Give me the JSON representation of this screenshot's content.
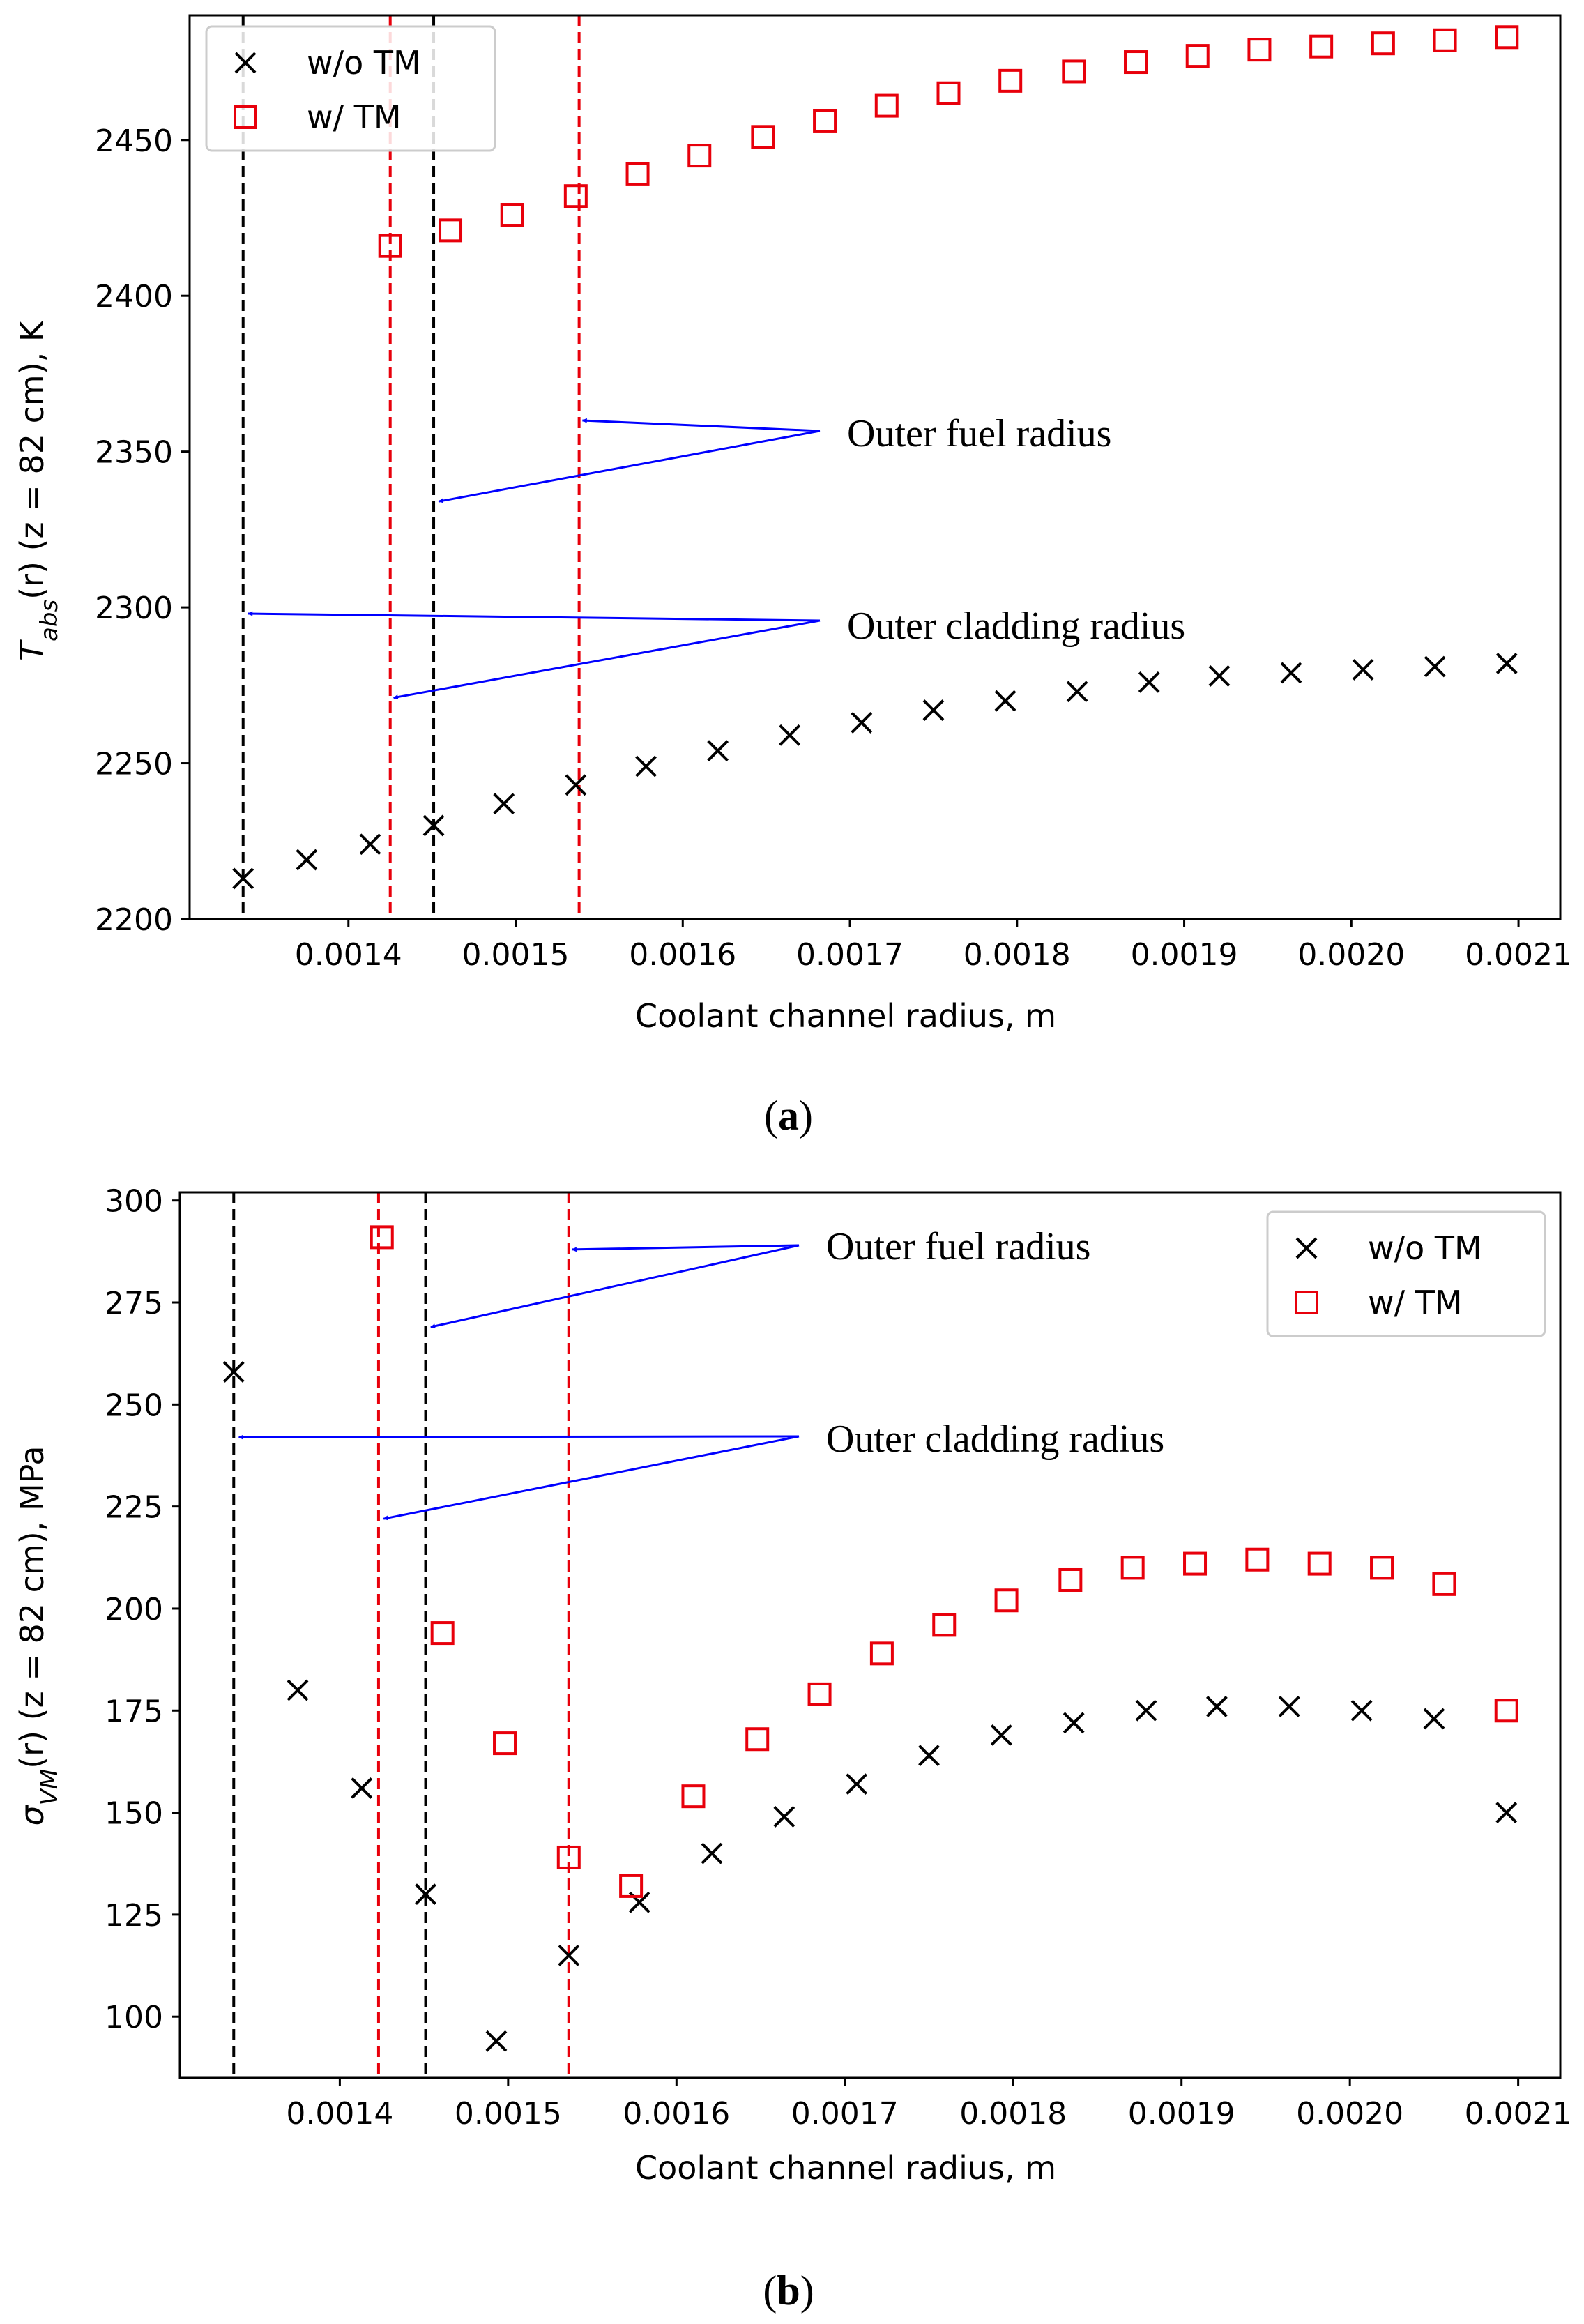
{
  "chart_data": [
    {
      "type": "scatter",
      "panel_label": {
        "open": "(",
        "letter": "a",
        "close": ")"
      },
      "xlabel": "Coolant channel radius, m",
      "ylabel": {
        "prefix": "T",
        "sub": "abs",
        "suffix": "(r) (z = 82 cm), K"
      },
      "xlim": [
        0.001305,
        0.002125
      ],
      "ylim": [
        2200,
        2490
      ],
      "xticks": [
        0.0014,
        0.0015,
        0.0016,
        0.0017,
        0.0018,
        0.0019,
        0.002,
        0.0021
      ],
      "xtick_labels": [
        "0.0014",
        "0.0015",
        "0.0016",
        "0.0017",
        "0.0018",
        "0.0019",
        "0.0020",
        "0.0021"
      ],
      "yticks": [
        2200,
        2250,
        2300,
        2350,
        2400,
        2450
      ],
      "ytick_labels": [
        "2200",
        "2250",
        "2300",
        "2350",
        "2400",
        "2450"
      ],
      "legend": {
        "position": "top-left",
        "entries": [
          "w/o TM",
          "w/ TM"
        ]
      },
      "series": [
        {
          "name": "w/o TM",
          "marker": "x",
          "color": "#000000",
          "x": [
            0.001337,
            0.001375,
            0.001413,
            0.001451,
            0.001493,
            0.001536,
            0.001578,
            0.001621,
            0.001664,
            0.001707,
            0.00175,
            0.001793,
            0.001836,
            0.001879,
            0.001921,
            0.001964,
            0.002007,
            0.00205,
            0.002093
          ],
          "y": [
            2213,
            2219,
            2224,
            2230,
            2237,
            2243,
            2249,
            2254,
            2259,
            2263,
            2267,
            2270,
            2273,
            2276,
            2278,
            2279,
            2280,
            2281,
            2282
          ]
        },
        {
          "name": "w/ TM",
          "marker": "square",
          "color": "#e8000b",
          "x": [
            0.001425,
            0.001461,
            0.001498,
            0.001536,
            0.001573,
            0.00161,
            0.001648,
            0.001685,
            0.001722,
            0.001759,
            0.001796,
            0.001834,
            0.001871,
            0.001908,
            0.001945,
            0.001982,
            0.002019,
            0.002056,
            0.002093
          ],
          "y": [
            2416,
            2421,
            2426,
            2432,
            2439,
            2445,
            2451,
            2456,
            2461,
            2465,
            2469,
            2472,
            2475,
            2477,
            2479,
            2480,
            2481,
            2482,
            2483
          ]
        }
      ],
      "vlines": [
        {
          "x": 0.001337,
          "color": "#000000",
          "name": "black-outer-cladding"
        },
        {
          "x": 0.001425,
          "color": "#e8000b",
          "name": "red-outer-cladding"
        },
        {
          "x": 0.001451,
          "color": "#000000",
          "name": "black-outer-fuel"
        },
        {
          "x": 0.001538,
          "color": "#e8000b",
          "name": "red-outer-fuel"
        }
      ],
      "annotations": [
        {
          "text": "Outer fuel radius",
          "targets": [
            {
              "x": 0.00154,
              "y": 2360
            },
            {
              "x": 0.001454,
              "y": 2334
            }
          ]
        },
        {
          "text": "Outer cladding radius",
          "targets": [
            {
              "x": 0.00134,
              "y": 2298
            },
            {
              "x": 0.001427,
              "y": 2271
            }
          ]
        }
      ]
    },
    {
      "type": "scatter",
      "panel_label": {
        "open": "(",
        "letter": "b",
        "close": ")"
      },
      "xlabel": "Coolant channel radius, m",
      "ylabel": {
        "prefix": "σ",
        "sub": "VM",
        "suffix": "(r) (z = 82 cm), MPa"
      },
      "xlim": [
        0.001305,
        0.002125
      ],
      "ylim": [
        85,
        302
      ],
      "xticks": [
        0.0014,
        0.0015,
        0.0016,
        0.0017,
        0.0018,
        0.0019,
        0.002,
        0.0021
      ],
      "xtick_labels": [
        "0.0014",
        "0.0015",
        "0.0016",
        "0.0017",
        "0.0018",
        "0.0019",
        "0.0020",
        "0.0021"
      ],
      "yticks": [
        100,
        125,
        150,
        175,
        200,
        225,
        250,
        275,
        300
      ],
      "ytick_labels": [
        "100",
        "125",
        "150",
        "175",
        "200",
        "225",
        "250",
        "275",
        "300"
      ],
      "legend": {
        "position": "top-right",
        "entries": [
          "w/o TM",
          "w/ TM"
        ]
      },
      "series": [
        {
          "name": "w/o TM",
          "marker": "x",
          "color": "#000000",
          "x": [
            0.001337,
            0.001375,
            0.001413,
            0.001451,
            0.001493,
            0.001536,
            0.001578,
            0.001621,
            0.001664,
            0.001707,
            0.00175,
            0.001793,
            0.001836,
            0.001879,
            0.001921,
            0.001964,
            0.002007,
            0.00205,
            0.002093
          ],
          "y": [
            258,
            180,
            156,
            130,
            94,
            115,
            128,
            140,
            149,
            157,
            164,
            169,
            172,
            175,
            176,
            176,
            175,
            173,
            150
          ]
        },
        {
          "name": "w/ TM",
          "marker": "square",
          "color": "#e8000b",
          "x": [
            0.001425,
            0.001461,
            0.001498,
            0.001536,
            0.001573,
            0.00161,
            0.001648,
            0.001685,
            0.001722,
            0.001759,
            0.001796,
            0.001834,
            0.001871,
            0.001908,
            0.001945,
            0.001982,
            0.002019,
            0.002056,
            0.002093
          ],
          "y": [
            291,
            194,
            167,
            139,
            132,
            154,
            168,
            179,
            189,
            196,
            202,
            207,
            210,
            211,
            212,
            211,
            210,
            206,
            175
          ]
        }
      ],
      "vlines": [
        {
          "x": 0.001337,
          "color": "#000000",
          "name": "black-outer-cladding"
        },
        {
          "x": 0.001423,
          "color": "#e8000b",
          "name": "red-outer-cladding"
        },
        {
          "x": 0.001451,
          "color": "#000000",
          "name": "black-outer-fuel"
        },
        {
          "x": 0.001536,
          "color": "#e8000b",
          "name": "red-outer-fuel"
        }
      ],
      "annotations": [
        {
          "text": "Outer fuel radius",
          "targets": [
            {
              "x": 0.001538,
              "y": 288
            },
            {
              "x": 0.001454,
              "y": 269
            }
          ]
        },
        {
          "text": "Outer cladding radius",
          "targets": [
            {
              "x": 0.00134,
              "y": 242
            },
            {
              "x": 0.001426,
              "y": 222
            }
          ]
        }
      ]
    }
  ]
}
